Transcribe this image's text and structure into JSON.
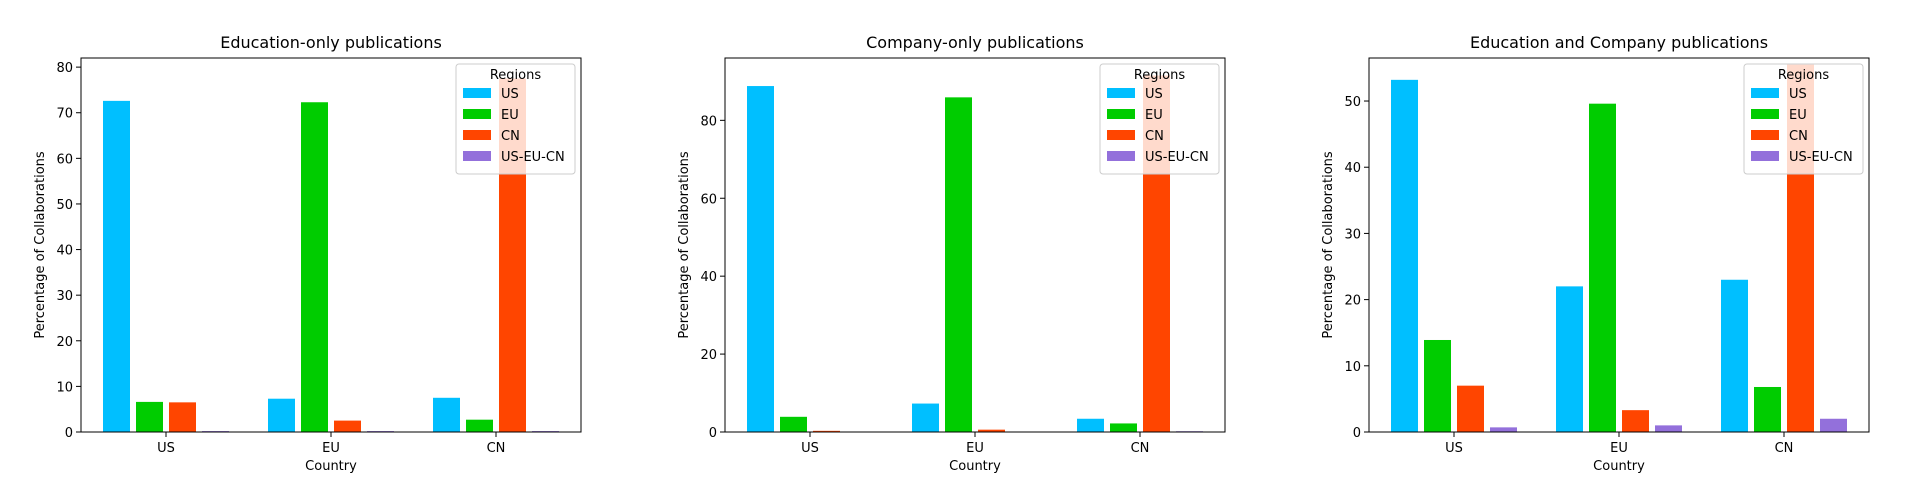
{
  "legend_title": "Regions",
  "region_colors": {
    "US": "#00BFFF",
    "EU": "#00CC00",
    "CN": "#FF4500",
    "US-EU-CN": "#9370DB"
  },
  "chart_data": [
    {
      "type": "bar",
      "title": "Education-only publications",
      "xlabel": "Country",
      "ylabel": "Percentage of Collaborations",
      "categories": [
        "US",
        "EU",
        "CN"
      ],
      "ylim": [
        0,
        82
      ],
      "yticks": [
        0,
        10,
        20,
        30,
        40,
        50,
        60,
        70,
        80
      ],
      "legend": {
        "title": "Regions",
        "position": "top-right"
      },
      "series": [
        {
          "name": "US",
          "color": "#00BFFF",
          "values": [
            72.6,
            7.3,
            7.5
          ]
        },
        {
          "name": "EU",
          "color": "#00CC00",
          "values": [
            6.6,
            72.3,
            2.7
          ]
        },
        {
          "name": "CN",
          "color": "#FF4500",
          "values": [
            6.5,
            2.5,
            77.5
          ]
        },
        {
          "name": "US-EU-CN",
          "color": "#9370DB",
          "values": [
            0.2,
            0.2,
            0.2
          ]
        }
      ]
    },
    {
      "type": "bar",
      "title": "Company-only publications",
      "xlabel": "Country",
      "ylabel": "Percentage of Collaborations",
      "categories": [
        "US",
        "EU",
        "CN"
      ],
      "ylim": [
        0,
        96
      ],
      "yticks": [
        0,
        20,
        40,
        60,
        80
      ],
      "legend": {
        "title": "Regions",
        "position": "top-right"
      },
      "series": [
        {
          "name": "US",
          "color": "#00BFFF",
          "values": [
            88.8,
            7.3,
            3.4
          ]
        },
        {
          "name": "EU",
          "color": "#00CC00",
          "values": [
            3.9,
            85.9,
            2.2
          ]
        },
        {
          "name": "CN",
          "color": "#FF4500",
          "values": [
            0.3,
            0.6,
            91.5
          ]
        },
        {
          "name": "US-EU-CN",
          "color": "#9370DB",
          "values": [
            0.1,
            0.1,
            0.2
          ]
        }
      ]
    },
    {
      "type": "bar",
      "title": "Education and Company publications",
      "xlabel": "Country",
      "ylabel": "Percentage of Collaborations",
      "categories": [
        "US",
        "EU",
        "CN"
      ],
      "ylim": [
        0,
        56.5
      ],
      "yticks": [
        0,
        10,
        20,
        30,
        40,
        50
      ],
      "legend": {
        "title": "Regions",
        "position": "top-right"
      },
      "series": [
        {
          "name": "US",
          "color": "#00BFFF",
          "values": [
            53.2,
            22.0,
            23.0
          ]
        },
        {
          "name": "EU",
          "color": "#00CC00",
          "values": [
            13.9,
            49.6,
            6.8
          ]
        },
        {
          "name": "CN",
          "color": "#FF4500",
          "values": [
            7.0,
            3.3,
            55.5
          ]
        },
        {
          "name": "US-EU-CN",
          "color": "#9370DB",
          "values": [
            0.7,
            1.0,
            2.0
          ]
        }
      ]
    }
  ]
}
